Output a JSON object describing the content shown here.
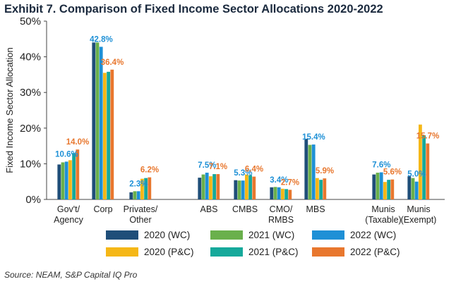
{
  "title": "Exhibit 7. Comparison of Fixed Income Sector Allocations 2020-2022",
  "source": "Source: NEAM, S&P Capital IQ Pro",
  "chart_data": {
    "type": "bar",
    "ylabel": "Fixed Income Sector Allocation",
    "xlabel": "",
    "ylim": [
      0,
      50
    ],
    "yticks": [
      "0%",
      "10%",
      "20%",
      "30%",
      "40%",
      "50%"
    ],
    "yticks_values": [
      0,
      10,
      20,
      30,
      40,
      50
    ],
    "grid": false,
    "legend_position": "bottom",
    "categories": [
      {
        "line1": "Gov't/",
        "line2": "Agency"
      },
      {
        "line1": "Corp",
        "line2": ""
      },
      {
        "line1": "Privates/",
        "line2": "Other"
      },
      {
        "line1": "ABS",
        "line2": ""
      },
      {
        "line1": "CMBS",
        "line2": ""
      },
      {
        "line1": "CMO/",
        "line2": "RMBS"
      },
      {
        "line1": "MBS",
        "line2": ""
      },
      {
        "line1": "Munis",
        "line2": "(Taxable)"
      },
      {
        "line1": "Munis",
        "line2": "(Exempt)"
      }
    ],
    "series": [
      {
        "name": "2020 (WC)",
        "color": "#1f4e79",
        "values": [
          9.8,
          44.0,
          2.0,
          6.1,
          5.4,
          3.4,
          17.0,
          7.0,
          6.5
        ]
      },
      {
        "name": "2021 (WC)",
        "color": "#6ab04c",
        "values": [
          10.4,
          44.0,
          2.3,
          7.0,
          5.3,
          3.5,
          15.3,
          7.5,
          6.0
        ]
      },
      {
        "name": "2022 (WC)",
        "color": "#1e90d6",
        "values": [
          10.6,
          42.8,
          2.3,
          7.5,
          5.3,
          3.4,
          15.4,
          7.6,
          5.0
        ]
      },
      {
        "name": "2020 (P&C)",
        "color": "#f5b717",
        "values": [
          11.0,
          35.5,
          5.8,
          6.5,
          7.0,
          3.0,
          6.0,
          4.9,
          21.0
        ]
      },
      {
        "name": "2021 (P&C)",
        "color": "#16a99b",
        "values": [
          13.0,
          35.8,
          6.0,
          7.1,
          6.8,
          2.9,
          5.5,
          5.5,
          18.0
        ]
      },
      {
        "name": "2022 (P&C)",
        "color": "#e8772e",
        "values": [
          14.0,
          36.4,
          6.2,
          7.1,
          6.4,
          2.7,
          5.9,
          5.6,
          15.7
        ]
      }
    ],
    "data_labels": [
      {
        "category": 0,
        "series": 2,
        "text": "10.6%",
        "color": "#1e90d6"
      },
      {
        "category": 0,
        "series": 5,
        "text": "14.0%",
        "color": "#e8772e"
      },
      {
        "category": 1,
        "series": 2,
        "text": "42.8%",
        "color": "#1e90d6"
      },
      {
        "category": 1,
        "series": 5,
        "text": "36.4%",
        "color": "#e8772e"
      },
      {
        "category": 2,
        "series": 2,
        "text": "2.3%",
        "color": "#1e90d6"
      },
      {
        "category": 2,
        "series": 5,
        "text": "6.2%",
        "color": "#e8772e"
      },
      {
        "category": 3,
        "series": 2,
        "text": "7.5%",
        "color": "#1e90d6"
      },
      {
        "category": 3,
        "series": 5,
        "text": "7.1%",
        "color": "#e8772e"
      },
      {
        "category": 4,
        "series": 2,
        "text": "5.3%",
        "color": "#1e90d6"
      },
      {
        "category": 4,
        "series": 5,
        "text": "6.4%",
        "color": "#e8772e"
      },
      {
        "category": 5,
        "series": 2,
        "text": "3.4%",
        "color": "#1e90d6"
      },
      {
        "category": 5,
        "series": 5,
        "text": "2.7%",
        "color": "#e8772e"
      },
      {
        "category": 6,
        "series": 2,
        "text": "15.4%",
        "color": "#1e90d6"
      },
      {
        "category": 6,
        "series": 5,
        "text": "5.9%",
        "color": "#e8772e"
      },
      {
        "category": 7,
        "series": 2,
        "text": "7.6%",
        "color": "#1e90d6"
      },
      {
        "category": 7,
        "series": 5,
        "text": "5.6%",
        "color": "#e8772e"
      },
      {
        "category": 8,
        "series": 2,
        "text": "5.0%",
        "color": "#1e90d6"
      },
      {
        "category": 8,
        "series": 5,
        "text": "15.7%",
        "color": "#e8772e"
      }
    ]
  }
}
